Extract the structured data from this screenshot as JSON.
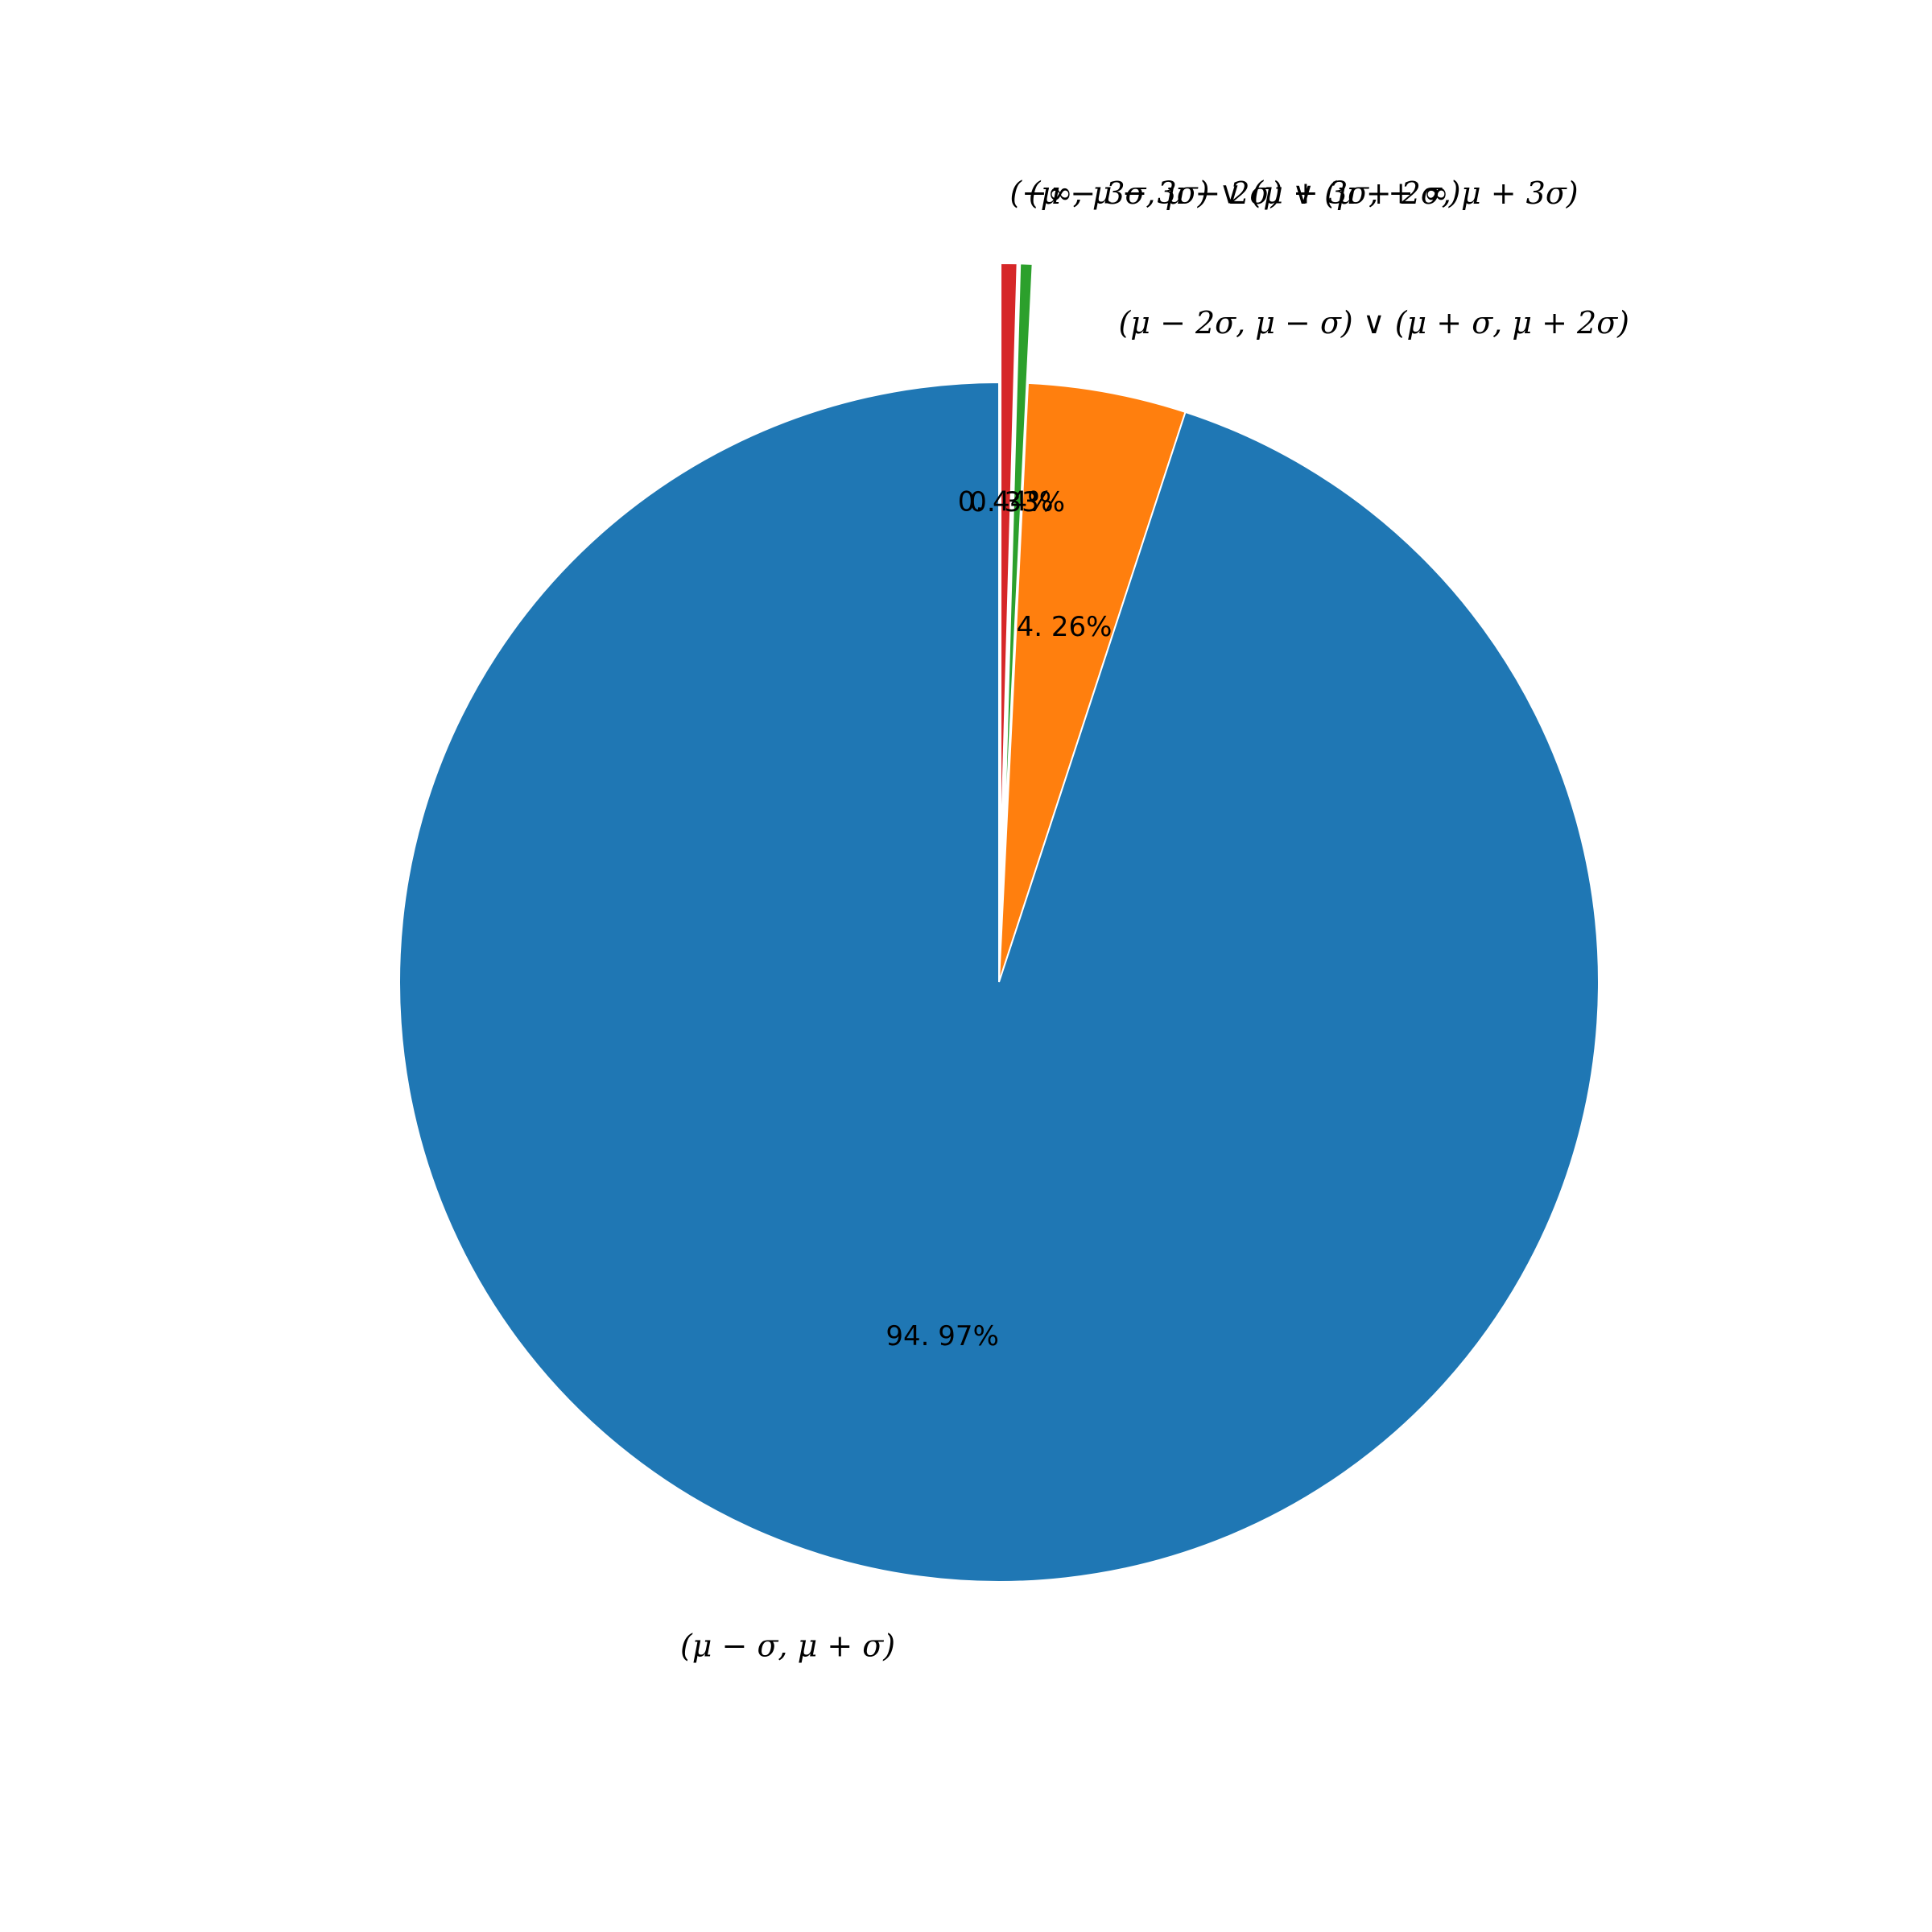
{
  "chart_data": {
    "type": "pie",
    "title": "",
    "start_angle_deg": 90,
    "direction": "clockwise",
    "legend": "none",
    "slices": [
      {
        "label": "(−∞, μ − 3σ) ∨ (μ + 3σ, + ∞)",
        "value": 0.44,
        "pct_label": "0. 44%",
        "color": "#d62728",
        "exploded": true
      },
      {
        "label": "(μ − 3σ, μ − 2σ) ∨ (μ + 2σ, μ + 3σ)",
        "value": 0.33,
        "pct_label": "0. 33%",
        "color": "#2ca02c",
        "exploded": true
      },
      {
        "label": "(μ − 2σ, μ − σ) ∨ (μ + σ, μ + 2σ)",
        "value": 4.26,
        "pct_label": "4. 26%",
        "color": "#ff7f0e",
        "exploded": false
      },
      {
        "label": "(μ − σ, μ + σ)",
        "value": 94.97,
        "pct_label": "94. 97%",
        "color": "#1f77b4",
        "exploded": false
      }
    ]
  }
}
